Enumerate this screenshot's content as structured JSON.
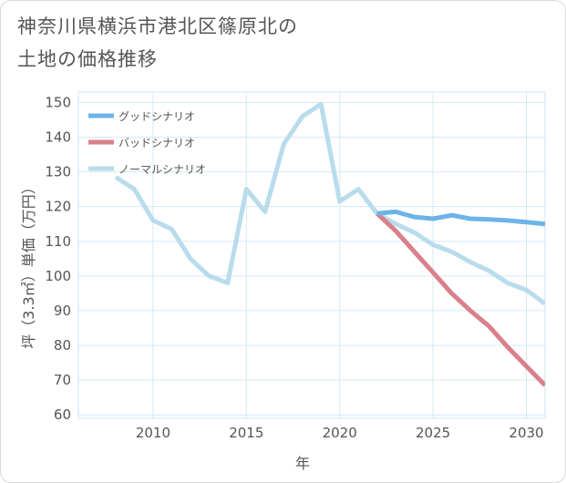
{
  "title": {
    "line1": "神奈川県横浜市港北区篠原北の",
    "line2": "土地の価格推移"
  },
  "chart_data": {
    "type": "line",
    "xlabel": "年",
    "ylabel": "坪（3.3㎡）単価（万円）",
    "xlim": [
      2006,
      2031
    ],
    "ylim": [
      59,
      153
    ],
    "xticks": [
      2010,
      2015,
      2020,
      2025,
      2030
    ],
    "yticks": [
      60,
      70,
      80,
      90,
      100,
      110,
      120,
      130,
      140,
      150
    ],
    "grid": true,
    "legend_position": "top-left",
    "series": [
      {
        "name": "グッドシナリオ",
        "color": "#6cb4e8",
        "x": [
          2022,
          2023,
          2024,
          2025,
          2026,
          2027,
          2028,
          2029,
          2030,
          2031
        ],
        "y": [
          118,
          118.5,
          117,
          116.5,
          117.5,
          116.5,
          116.3,
          116,
          115.5,
          115
        ]
      },
      {
        "name": "バッドシナリオ",
        "color": "#d9808a",
        "x": [
          2022,
          2023,
          2024,
          2025,
          2026,
          2027,
          2028,
          2029,
          2030,
          2031
        ],
        "y": [
          118,
          113,
          107,
          101,
          95,
          90,
          85.5,
          79.5,
          74,
          68.5
        ]
      },
      {
        "name": "ノーマルシナリオ",
        "color": "#b9dcec",
        "x": [
          2008,
          2009,
          2010,
          2011,
          2012,
          2013,
          2014,
          2015,
          2016,
          2017,
          2018,
          2019,
          2020,
          2021,
          2022,
          2023,
          2024,
          2025,
          2026,
          2027,
          2028,
          2029,
          2030,
          2031
        ],
        "y": [
          128.5,
          125,
          116,
          113.5,
          105,
          100,
          98,
          125,
          118.5,
          138,
          146,
          149.5,
          121.5,
          125,
          118,
          115,
          112.5,
          109,
          107,
          104,
          101.5,
          98,
          96,
          92
        ]
      }
    ]
  }
}
